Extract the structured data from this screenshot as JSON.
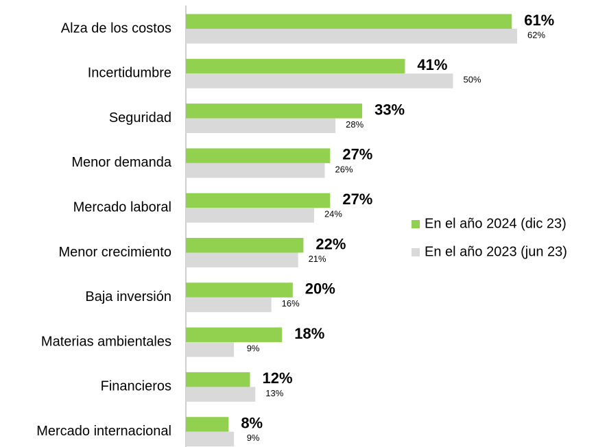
{
  "chart_data": {
    "type": "bar",
    "orientation": "horizontal",
    "categories": [
      "Alza de los costos",
      "Incertidumbre",
      "Seguridad",
      "Menor demanda",
      "Mercado laboral",
      "Menor crecimiento",
      "Baja inversión",
      "Materias ambientales",
      "Financieros",
      "Mercado internacional"
    ],
    "series": [
      {
        "name": "En el año 2024 (dic 23)",
        "color": "#92d050",
        "values": [
          61,
          41,
          33,
          27,
          27,
          22,
          20,
          18,
          12,
          8
        ],
        "value_labels": [
          "61%",
          "41%",
          "33%",
          "27%",
          "27%",
          "22%",
          "20%",
          "18%",
          "12%",
          "8%"
        ]
      },
      {
        "name": "En el año 2023 (jun 23)",
        "color": "#d9d9d9",
        "values": [
          62,
          50,
          28,
          26,
          24,
          21,
          16,
          9,
          13,
          9
        ],
        "value_labels": [
          "62%",
          "50%",
          "28%",
          "26%",
          "24%",
          "21%",
          "16%",
          "9%",
          "13%",
          "9%"
        ]
      }
    ],
    "legend": "right"
  }
}
